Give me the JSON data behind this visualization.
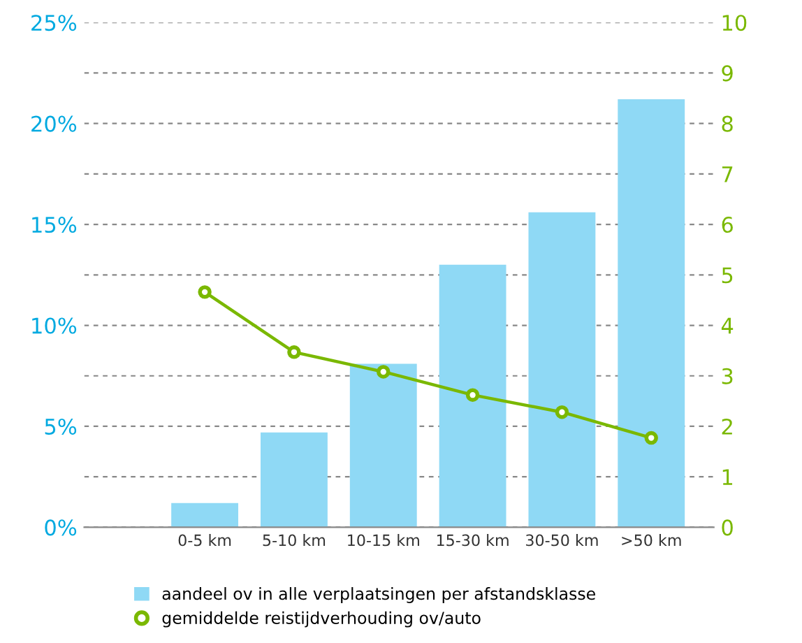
{
  "chart_data": {
    "type": "bar",
    "categories": [
      "0-5 km",
      "5-10 km",
      "10-15 km",
      "15-30 km",
      "30-50 km",
      ">50 km"
    ],
    "series": [
      {
        "name": "aandeel ov in alle verplaatsingen per afstandsklasse",
        "color": "#8fd9f5",
        "values": [
          1.2,
          4.7,
          8.1,
          13.0,
          15.6,
          21.2
        ]
      },
      {
        "name": "gemiddelde reistijdverhouding ov/auto",
        "type": "line",
        "axis": "y2",
        "color": "#7ab800",
        "marker": "circle",
        "values": [
          4.66,
          3.47,
          3.08,
          2.62,
          2.28,
          1.77
        ]
      }
    ],
    "ylim": [
      0,
      25
    ],
    "yticks": [
      {
        "value": 0,
        "label": "0%"
      },
      {
        "value": 2.5,
        "label": null
      },
      {
        "value": 5,
        "label": "5%"
      },
      {
        "value": 7.5,
        "label": null
      },
      {
        "value": 10,
        "label": "10%"
      },
      {
        "value": 12.5,
        "label": null
      },
      {
        "value": 15,
        "label": "15%"
      },
      {
        "value": 17.5,
        "label": null
      },
      {
        "value": 20,
        "label": "20%"
      },
      {
        "value": 22.5,
        "label": null
      },
      {
        "value": 25,
        "label": "25%"
      }
    ],
    "y2lim": [
      0,
      10
    ],
    "y2ticks": [
      0,
      1,
      2,
      3,
      4,
      5,
      6,
      7,
      8,
      9,
      10
    ],
    "grid": "y",
    "legend": "bottom"
  }
}
